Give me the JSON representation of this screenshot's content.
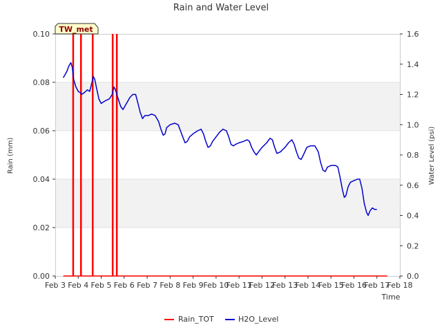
{
  "chart_data": {
    "type": "line",
    "title": "Rain and Water Level",
    "badge": "TW_met",
    "xlabel": "Time",
    "ylabel_left": "Rain (mm)",
    "ylabel_right": "Water Level (psi)",
    "x_ticks": [
      "Feb 3",
      "Feb 4",
      "Feb 5",
      "Feb 6",
      "Feb 7",
      "Feb 8",
      "Feb 9",
      "Feb 10",
      "Feb 11",
      "Feb 12",
      "Feb 13",
      "Feb 14",
      "Feb 15",
      "Feb 16",
      "Feb 17",
      "Feb 18"
    ],
    "x_range_days": [
      3,
      18
    ],
    "y_left_range": [
      0,
      0.1
    ],
    "y_left_ticks": [
      "0.00",
      "0.02",
      "0.04",
      "0.06",
      "0.08",
      "0.10"
    ],
    "y_right_range": [
      0,
      1.6
    ],
    "y_right_ticks": [
      "0.0",
      "0.2",
      "0.4",
      "0.6",
      "0.8",
      "1.0",
      "1.2",
      "1.4",
      "1.6"
    ],
    "grid": "alternating horizontal bands",
    "legend_position": "bottom-center",
    "colors": {
      "rain": "#ff0000",
      "h2o": "#0000cc",
      "band": "#f2f2f2",
      "badge_bg": "#ffffcc",
      "badge_text": "#8b0000"
    },
    "series": [
      {
        "name": "Rain_TOT",
        "note_axis": "left",
        "baseline": 0.0,
        "x_start_day": 3.35,
        "x_end_day": 17.45,
        "spikes": [
          {
            "day": 3.78,
            "value": 0.1
          },
          {
            "day": 4.12,
            "value": 0.1
          },
          {
            "day": 4.63,
            "value": 0.1
          },
          {
            "day": 5.5,
            "value": 0.1
          },
          {
            "day": 5.68,
            "value": 0.1
          }
        ]
      },
      {
        "name": "H2O_Level",
        "note_axis": "right",
        "points": [
          [
            3.35,
            1.31
          ],
          [
            3.5,
            1.35
          ],
          [
            3.6,
            1.39
          ],
          [
            3.68,
            1.41
          ],
          [
            3.74,
            1.38
          ],
          [
            3.8,
            1.3
          ],
          [
            3.9,
            1.25
          ],
          [
            4.0,
            1.22
          ],
          [
            4.1,
            1.21
          ],
          [
            4.15,
            1.2
          ],
          [
            4.25,
            1.21
          ],
          [
            4.4,
            1.23
          ],
          [
            4.5,
            1.22
          ],
          [
            4.6,
            1.28
          ],
          [
            4.65,
            1.32
          ],
          [
            4.72,
            1.3
          ],
          [
            4.8,
            1.24
          ],
          [
            4.9,
            1.17
          ],
          [
            5.0,
            1.14
          ],
          [
            5.1,
            1.15
          ],
          [
            5.2,
            1.16
          ],
          [
            5.35,
            1.17
          ],
          [
            5.48,
            1.2
          ],
          [
            5.55,
            1.25
          ],
          [
            5.62,
            1.23
          ],
          [
            5.72,
            1.18
          ],
          [
            5.85,
            1.12
          ],
          [
            5.95,
            1.1
          ],
          [
            6.1,
            1.14
          ],
          [
            6.25,
            1.18
          ],
          [
            6.38,
            1.2
          ],
          [
            6.5,
            1.2
          ],
          [
            6.6,
            1.14
          ],
          [
            6.7,
            1.08
          ],
          [
            6.8,
            1.04
          ],
          [
            6.9,
            1.06
          ],
          [
            7.05,
            1.06
          ],
          [
            7.2,
            1.07
          ],
          [
            7.35,
            1.06
          ],
          [
            7.5,
            1.02
          ],
          [
            7.6,
            0.97
          ],
          [
            7.7,
            0.93
          ],
          [
            7.78,
            0.94
          ],
          [
            7.85,
            0.98
          ],
          [
            8.0,
            1.0
          ],
          [
            8.2,
            1.01
          ],
          [
            8.35,
            1.0
          ],
          [
            8.45,
            0.96
          ],
          [
            8.55,
            0.92
          ],
          [
            8.65,
            0.88
          ],
          [
            8.75,
            0.89
          ],
          [
            8.85,
            0.92
          ],
          [
            9.0,
            0.94
          ],
          [
            9.2,
            0.96
          ],
          [
            9.35,
            0.97
          ],
          [
            9.45,
            0.94
          ],
          [
            9.55,
            0.89
          ],
          [
            9.65,
            0.85
          ],
          [
            9.75,
            0.86
          ],
          [
            9.85,
            0.89
          ],
          [
            10.0,
            0.92
          ],
          [
            10.15,
            0.95
          ],
          [
            10.3,
            0.97
          ],
          [
            10.45,
            0.96
          ],
          [
            10.55,
            0.92
          ],
          [
            10.65,
            0.87
          ],
          [
            10.75,
            0.86
          ],
          [
            10.85,
            0.87
          ],
          [
            11.0,
            0.88
          ],
          [
            11.2,
            0.89
          ],
          [
            11.35,
            0.9
          ],
          [
            11.45,
            0.89
          ],
          [
            11.55,
            0.85
          ],
          [
            11.65,
            0.82
          ],
          [
            11.75,
            0.8
          ],
          [
            11.85,
            0.82
          ],
          [
            12.0,
            0.85
          ],
          [
            12.2,
            0.88
          ],
          [
            12.35,
            0.91
          ],
          [
            12.45,
            0.9
          ],
          [
            12.55,
            0.85
          ],
          [
            12.65,
            0.81
          ],
          [
            12.8,
            0.82
          ],
          [
            13.0,
            0.85
          ],
          [
            13.15,
            0.88
          ],
          [
            13.3,
            0.9
          ],
          [
            13.4,
            0.87
          ],
          [
            13.5,
            0.82
          ],
          [
            13.6,
            0.78
          ],
          [
            13.7,
            0.77
          ],
          [
            13.8,
            0.8
          ],
          [
            13.95,
            0.85
          ],
          [
            14.1,
            0.86
          ],
          [
            14.3,
            0.86
          ],
          [
            14.45,
            0.82
          ],
          [
            14.55,
            0.75
          ],
          [
            14.65,
            0.7
          ],
          [
            14.75,
            0.69
          ],
          [
            14.85,
            0.72
          ],
          [
            15.0,
            0.73
          ],
          [
            15.2,
            0.73
          ],
          [
            15.3,
            0.72
          ],
          [
            15.4,
            0.65
          ],
          [
            15.5,
            0.57
          ],
          [
            15.58,
            0.52
          ],
          [
            15.65,
            0.53
          ],
          [
            15.75,
            0.59
          ],
          [
            15.85,
            0.62
          ],
          [
            16.0,
            0.63
          ],
          [
            16.15,
            0.64
          ],
          [
            16.25,
            0.64
          ],
          [
            16.35,
            0.58
          ],
          [
            16.45,
            0.48
          ],
          [
            16.55,
            0.42
          ],
          [
            16.62,
            0.4
          ],
          [
            16.7,
            0.43
          ],
          [
            16.8,
            0.45
          ],
          [
            16.9,
            0.44
          ],
          [
            17.0,
            0.44
          ]
        ]
      }
    ]
  }
}
